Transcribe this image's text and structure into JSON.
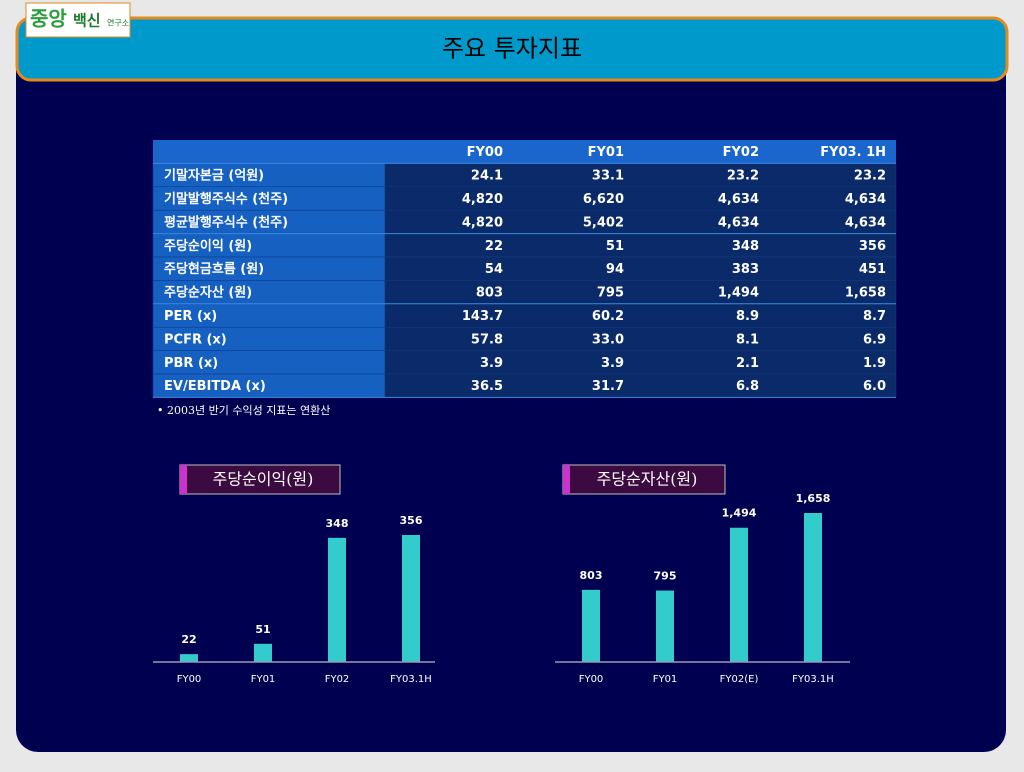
{
  "logo": {
    "main": "중앙",
    "sub": "백신",
    "small": "연구소"
  },
  "title": "주요 투자지표",
  "table": {
    "columns": [
      "FY00",
      "FY01",
      "FY02",
      "FY03. 1H"
    ],
    "rows": [
      [
        "기말자본금 (억원)",
        "24.1",
        "33.1",
        "23.2",
        "23.2"
      ],
      [
        "기말발행주식수 (천주)",
        "4,820",
        "6,620",
        "4,634",
        "4,634"
      ],
      [
        "평균발행주식수 (천주)",
        "4,820",
        "5,402",
        "4,634",
        "4,634"
      ],
      [
        "주당순이익 (원)",
        "22",
        "51",
        "348",
        "356"
      ],
      [
        "주당현금흐름 (원)",
        "54",
        "94",
        "383",
        "451"
      ],
      [
        "주당순자산 (원)",
        "803",
        "795",
        "1,494",
        "1,658"
      ],
      [
        "PER (x)",
        "143.7",
        "60.2",
        "8.9",
        "8.7"
      ],
      [
        "PCFR (x)",
        "57.8",
        "33.0",
        "8.1",
        "6.9"
      ],
      [
        "PBR (x)",
        "3.9",
        "3.9",
        "2.1",
        "1.9"
      ],
      [
        "EV/EBITDA (x)",
        "36.5",
        "31.7",
        "6.8",
        "6.0"
      ]
    ]
  },
  "note": "• 2003년 반기 수익성 지표는 연환산",
  "chart_data": [
    {
      "type": "bar",
      "title": "주당순이익(원)",
      "categories": [
        "FY00",
        "FY01",
        "FY02",
        "FY03.1H"
      ],
      "values": [
        22,
        51,
        348,
        356
      ],
      "color": "#33cccc"
    },
    {
      "type": "bar",
      "title": "주당순자산(원)",
      "categories": [
        "FY00",
        "FY01",
        "FY02(E)",
        "FY03.1H"
      ],
      "values": [
        803,
        795,
        1494,
        1658
      ],
      "value_labels": [
        "803",
        "795",
        "1,494",
        "1,658"
      ],
      "color": "#33cccc"
    }
  ]
}
